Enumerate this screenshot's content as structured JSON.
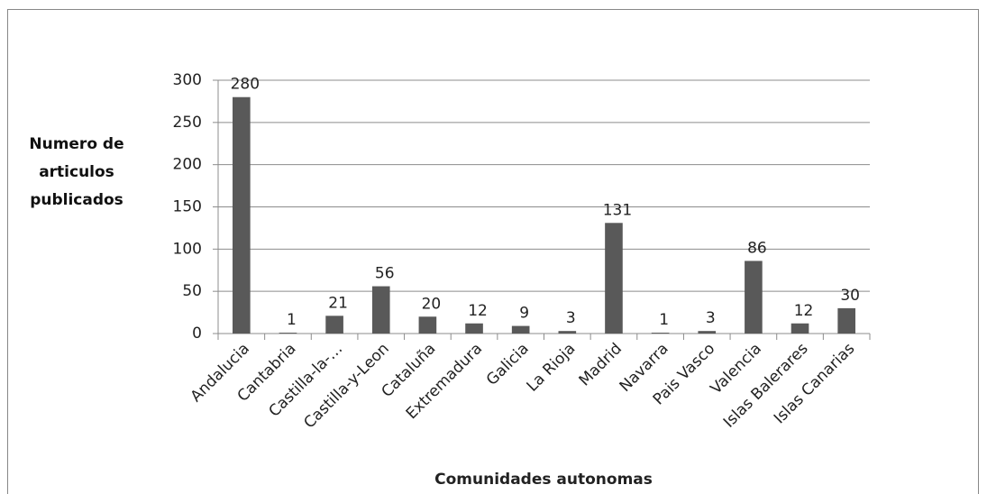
{
  "chart_data": {
    "type": "bar",
    "x_label": "Comunidades autonomas",
    "y_label": "Numero de articulos publicados",
    "categories": [
      "Andalucia",
      "Cantabria",
      "Castilla-la-…",
      "Castilla-y-Leon",
      "Cataluña",
      "Extremadura",
      "Galicia",
      "La Rioja",
      "Madrid",
      "Navarra",
      "Pais Vasco",
      "Valencia",
      "Islas Balerares",
      "Islas Canarias"
    ],
    "values": [
      280,
      1,
      21,
      56,
      20,
      12,
      9,
      3,
      131,
      1,
      3,
      86,
      12,
      30
    ],
    "color": "#595959",
    "ylim": [
      0,
      300
    ],
    "yticks": [
      0,
      50,
      100,
      150,
      200,
      250,
      300
    ],
    "grid": true
  }
}
